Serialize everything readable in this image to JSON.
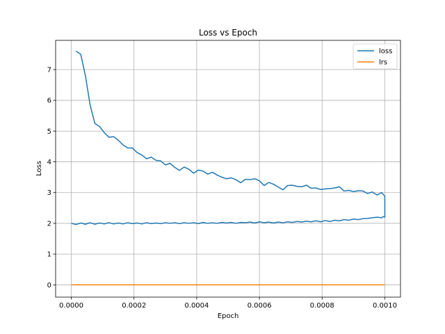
{
  "chart_data": {
    "type": "line",
    "title": "Loss vs Epoch",
    "xlabel": "Epoch",
    "ylabel": "Loss",
    "xlim": [
      -5e-05,
      0.00105
    ],
    "ylim": [
      -0.4,
      7.95
    ],
    "x_ticks": [
      0.0,
      0.0002,
      0.0004,
      0.0006,
      0.0008,
      0.001
    ],
    "x_tick_labels": [
      "0.0000",
      "0.0002",
      "0.0004",
      "0.0006",
      "0.0008",
      "0.0010"
    ],
    "y_ticks": [
      0,
      1,
      2,
      3,
      4,
      5,
      6,
      7
    ],
    "y_tick_labels": [
      "0",
      "1",
      "2",
      "3",
      "4",
      "5",
      "6",
      "7"
    ],
    "grid": true,
    "legend_position": "top-right",
    "series": [
      {
        "name": "loss",
        "color": "#1f77b4",
        "points": [
          [
            1.5e-05,
            7.6
          ],
          [
            3e-05,
            7.5
          ],
          [
            4.5e-05,
            6.8
          ],
          [
            6e-05,
            5.85
          ],
          [
            7.5e-05,
            5.25
          ],
          [
            9e-05,
            5.15
          ],
          [
            0.000105,
            4.95
          ],
          [
            0.00012,
            4.8
          ],
          [
            0.000135,
            4.82
          ],
          [
            0.00015,
            4.7
          ],
          [
            0.000165,
            4.55
          ],
          [
            0.00018,
            4.45
          ],
          [
            0.000195,
            4.45
          ],
          [
            0.00021,
            4.3
          ],
          [
            0.000225,
            4.22
          ],
          [
            0.00024,
            4.1
          ],
          [
            0.000255,
            4.15
          ],
          [
            0.00027,
            4.05
          ],
          [
            0.000285,
            4.03
          ],
          [
            0.0003,
            3.9
          ],
          [
            0.000315,
            3.95
          ],
          [
            0.00033,
            3.82
          ],
          [
            0.000345,
            3.72
          ],
          [
            0.00036,
            3.83
          ],
          [
            0.000375,
            3.76
          ],
          [
            0.00039,
            3.63
          ],
          [
            0.000405,
            3.73
          ],
          [
            0.00042,
            3.7
          ],
          [
            0.000435,
            3.6
          ],
          [
            0.00045,
            3.66
          ],
          [
            0.000465,
            3.57
          ],
          [
            0.00048,
            3.5
          ],
          [
            0.000495,
            3.45
          ],
          [
            0.00051,
            3.48
          ],
          [
            0.000525,
            3.42
          ],
          [
            0.00054,
            3.32
          ],
          [
            0.000555,
            3.43
          ],
          [
            0.00057,
            3.42
          ],
          [
            0.000585,
            3.45
          ],
          [
            0.0006,
            3.38
          ],
          [
            0.000615,
            3.23
          ],
          [
            0.00063,
            3.33
          ],
          [
            0.000645,
            3.27
          ],
          [
            0.00066,
            3.18
          ],
          [
            0.000675,
            3.09
          ],
          [
            0.00069,
            3.23
          ],
          [
            0.000705,
            3.24
          ],
          [
            0.00072,
            3.2
          ],
          [
            0.000735,
            3.19
          ],
          [
            0.00075,
            3.24
          ],
          [
            0.000765,
            3.14
          ],
          [
            0.00078,
            3.15
          ],
          [
            0.000795,
            3.1
          ],
          [
            0.00081,
            3.12
          ],
          [
            0.000825,
            3.13
          ],
          [
            0.00084,
            3.15
          ],
          [
            0.000855,
            3.19
          ],
          [
            0.00087,
            3.05
          ],
          [
            0.000885,
            3.07
          ],
          [
            0.0009,
            3.03
          ],
          [
            0.000915,
            3.06
          ],
          [
            0.00093,
            3.05
          ],
          [
            0.000945,
            2.97
          ],
          [
            0.00096,
            3.02
          ],
          [
            0.000975,
            2.92
          ],
          [
            0.00099,
            3.0
          ],
          [
            0.001,
            2.88
          ],
          [
            0.001,
            2.2
          ],
          [
            0.000995,
            2.22
          ],
          [
            0.00099,
            2.18
          ],
          [
            0.000975,
            2.2
          ],
          [
            0.00096,
            2.18
          ],
          [
            0.000945,
            2.16
          ],
          [
            0.00093,
            2.15
          ],
          [
            0.000915,
            2.12
          ],
          [
            0.0009,
            2.14
          ],
          [
            0.000885,
            2.1
          ],
          [
            0.00087,
            2.12
          ],
          [
            0.000855,
            2.08
          ],
          [
            0.00084,
            2.1
          ],
          [
            0.000825,
            2.06
          ],
          [
            0.00081,
            2.09
          ],
          [
            0.000795,
            2.05
          ],
          [
            0.00078,
            2.08
          ],
          [
            0.000765,
            2.05
          ],
          [
            0.00075,
            2.07
          ],
          [
            0.000735,
            2.04
          ],
          [
            0.00072,
            2.06
          ],
          [
            0.000705,
            2.03
          ],
          [
            0.00069,
            2.05
          ],
          [
            0.000675,
            2.02
          ],
          [
            0.00066,
            2.04
          ],
          [
            0.000645,
            2.01
          ],
          [
            0.00063,
            2.04
          ],
          [
            0.000615,
            2.02
          ],
          [
            0.0006,
            2.05
          ],
          [
            0.000585,
            2.01
          ],
          [
            0.00057,
            2.04
          ],
          [
            0.000555,
            2.02
          ],
          [
            0.00054,
            2.03
          ],
          [
            0.000525,
            2.0
          ],
          [
            0.00051,
            2.03
          ],
          [
            0.000495,
            2.01
          ],
          [
            0.00048,
            2.03
          ],
          [
            0.000465,
            2.0
          ],
          [
            0.00045,
            2.02
          ],
          [
            0.000435,
            2.0
          ],
          [
            0.00042,
            2.03
          ],
          [
            0.000405,
            1.99
          ],
          [
            0.00039,
            2.02
          ],
          [
            0.000375,
            2.0
          ],
          [
            0.00036,
            2.02
          ],
          [
            0.000345,
            1.99
          ],
          [
            0.00033,
            2.02
          ],
          [
            0.000315,
            2.0
          ],
          [
            0.0003,
            2.02
          ],
          [
            0.000285,
            1.99
          ],
          [
            0.00027,
            2.01
          ],
          [
            0.000255,
            1.99
          ],
          [
            0.00024,
            2.02
          ],
          [
            0.000225,
            1.98
          ],
          [
            0.00021,
            2.01
          ],
          [
            0.000195,
            1.99
          ],
          [
            0.00018,
            2.02
          ],
          [
            0.000165,
            1.98
          ],
          [
            0.00015,
            2.01
          ],
          [
            0.000135,
            1.98
          ],
          [
            0.00012,
            2.02
          ],
          [
            0.000105,
            1.98
          ],
          [
            9e-05,
            2.01
          ],
          [
            7.5e-05,
            1.97
          ],
          [
            6e-05,
            2.02
          ],
          [
            4.5e-05,
            1.97
          ],
          [
            3e-05,
            2.01
          ],
          [
            1.5e-05,
            1.96
          ],
          [
            0.0,
            2.0
          ]
        ]
      },
      {
        "name": "lrs",
        "color": "#ff7f0e",
        "points": [
          [
            0.0,
            0.0
          ],
          [
            0.001,
            0.0
          ]
        ]
      }
    ]
  }
}
